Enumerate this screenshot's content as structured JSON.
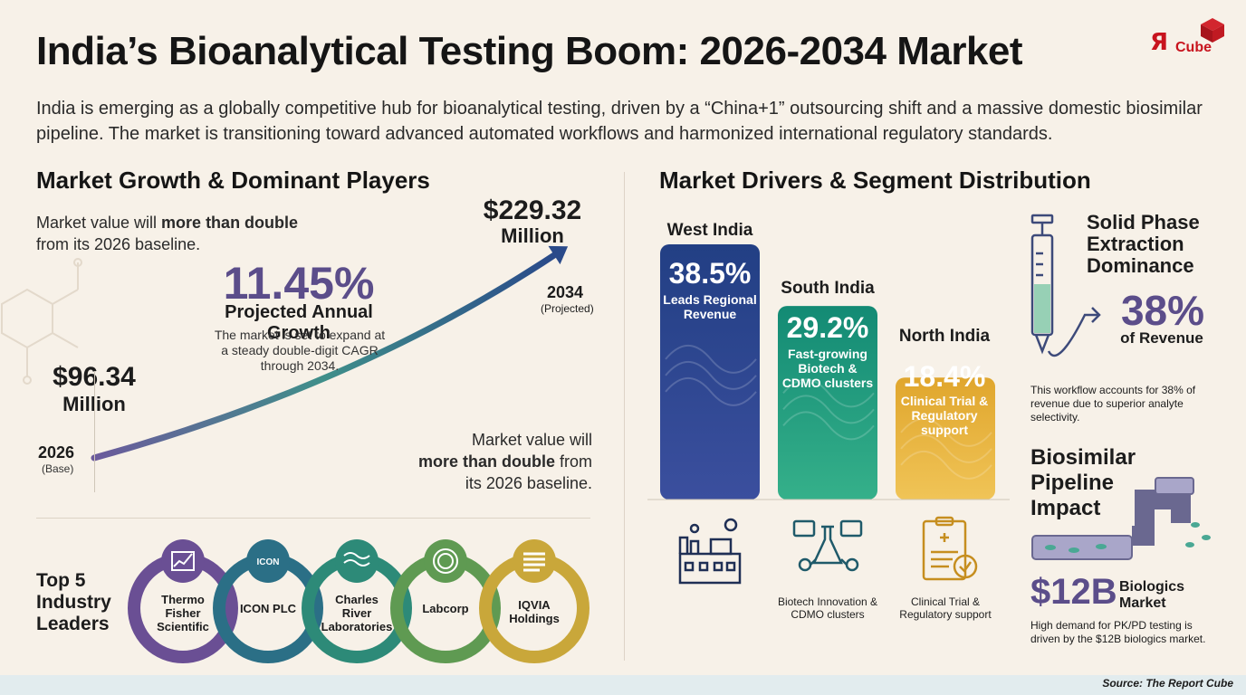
{
  "title": "India’s Bioanalytical Testing Boom: 2026-2034 Market",
  "intro": "India is emerging as a globally competitive hub for bioanalytical testing, driven by a “China+1” outsourcing shift and a massive domestic biosimilar pipeline. The market is transitioning toward advanced automated workflows and harmonized international regulatory standards.",
  "logo": {
    "r": "Я",
    "text": "Cube"
  },
  "left": {
    "heading": "Market Growth & Dominant Players",
    "note_top_a": "Market value will ",
    "note_top_b": "more than double",
    "note_top_c": "from its 2026 baseline.",
    "cagr_value": "11.45%",
    "cagr_label": "Projected Annual Growth",
    "cagr_desc": "The market is set to expand at a steady double-digit CAGR through 2034.",
    "start_value": "$96.34",
    "start_unit": "Million",
    "start_year": "2026",
    "start_tag": "(Base)",
    "end_value": "$229.32",
    "end_unit": "Million",
    "end_year": "2034",
    "end_tag": "(Projected)",
    "note_bottom_a": "Market value will",
    "note_bottom_b": "more than double",
    "note_bottom_c": " from",
    "note_bottom_d": "its 2026 baseline.",
    "leaders_heading": "Top 5 Industry Leaders",
    "leaders": [
      "Thermo Fisher Scientific",
      "ICON PLC",
      "Charles River Laboratories",
      "Labcorp",
      "IQVIA Holdings"
    ],
    "icon_logo_text": "ICON"
  },
  "chart_data": [
    {
      "type": "line",
      "x": [
        "2026",
        "2034"
      ],
      "y": [
        96.34,
        229.32
      ],
      "unit": "Million",
      "cagr": "11.45%"
    },
    {
      "type": "bar",
      "categories": [
        "West India",
        "South India",
        "North India"
      ],
      "values": [
        38.5,
        29.2,
        18.4
      ],
      "labels": [
        "38.5%",
        "29.2%",
        "18.4%"
      ],
      "descriptions": [
        "Leads Regional Revenue",
        "Fast-growing Biotech & CDMO clusters",
        "Clinical Trial & Regulatory support"
      ],
      "colors": [
        "#2a4a8a",
        "#1f9a7e",
        "#e7b43b"
      ]
    }
  ],
  "right": {
    "heading": "Market Drivers & Segment Distribution",
    "captions": [
      "Biotech Innovation & CDMO clusters",
      "Clinical Trial & Regulatory support"
    ],
    "spe_title": "Solid Phase Extraction Dominance",
    "spe_value": "38%",
    "spe_unit": "of Revenue",
    "spe_desc": "This workflow accounts for 38% of revenue due to superior analyte selectivity.",
    "bio_title": "Biosimilar Pipeline Impact",
    "bio_value": "$12B",
    "bio_label": "Biologics Market",
    "bio_desc": "High demand for PK/PD testing is driven by the $12B biologics market."
  },
  "source": "Source: The Report Cube"
}
